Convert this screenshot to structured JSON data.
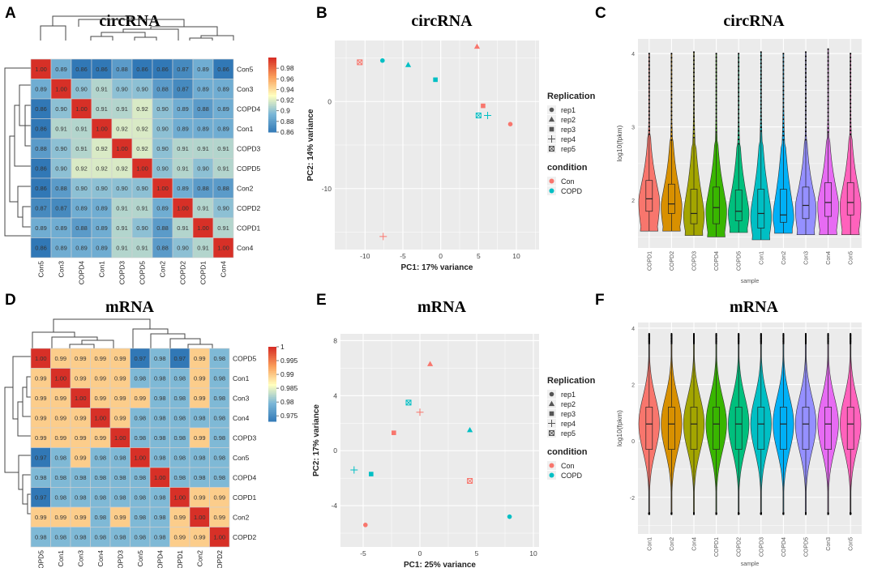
{
  "figure": {
    "panel_letters": [
      "A",
      "B",
      "C",
      "D",
      "E",
      "F"
    ]
  },
  "chart_data": [
    {
      "panel": "A",
      "type": "heatmap",
      "title": "circRNA",
      "labels": [
        "Con5",
        "Con3",
        "COPD4",
        "Con1",
        "COPD3",
        "COPD5",
        "Con2",
        "COPD2",
        "COPD1",
        "Con4"
      ],
      "values": [
        [
          "1.00",
          "0.89",
          "0.86",
          "0.86",
          "0.88",
          "0.86",
          "0.86",
          "0.87",
          "0.89",
          "0.86"
        ],
        [
          "0.89",
          "1.00",
          "0.90",
          "0.91",
          "0.90",
          "0.90",
          "0.88",
          "0.87",
          "0.89",
          "0.89"
        ],
        [
          "0.86",
          "0.90",
          "1.00",
          "0.91",
          "0.91",
          "0.92",
          "0.90",
          "0.89",
          "0.88",
          "0.89"
        ],
        [
          "0.86",
          "0.91",
          "0.91",
          "1.00",
          "0.92",
          "0.92",
          "0.90",
          "0.89",
          "0.89",
          "0.89"
        ],
        [
          "0.88",
          "0.90",
          "0.91",
          "0.92",
          "1.00",
          "0.92",
          "0.90",
          "0.91",
          "0.91",
          "0.91"
        ],
        [
          "0.86",
          "0.90",
          "0.92",
          "0.92",
          "0.92",
          "1.00",
          "0.90",
          "0.91",
          "0.90",
          "0.91"
        ],
        [
          "0.86",
          "0.88",
          "0.90",
          "0.90",
          "0.90",
          "0.90",
          "1.00",
          "0.89",
          "0.88",
          "0.88"
        ],
        [
          "0.87",
          "0.87",
          "0.89",
          "0.89",
          "0.91",
          "0.91",
          "0.89",
          "1.00",
          "0.91",
          "0.90"
        ],
        [
          "0.89",
          "0.89",
          "0.88",
          "0.89",
          "0.91",
          "0.90",
          "0.88",
          "0.91",
          "1.00",
          "0.91"
        ],
        [
          "0.86",
          "0.89",
          "0.89",
          "0.89",
          "0.91",
          "0.91",
          "0.88",
          "0.90",
          "0.91",
          "1.00"
        ]
      ],
      "color_min": 0.86,
      "color_max": 1.0,
      "colorbar_ticks": [
        "0.98",
        "0.96",
        "0.94",
        "0.92",
        "0.9",
        "0.88",
        "0.86"
      ],
      "colorbar_tick_values": [
        0.98,
        0.96,
        0.94,
        0.92,
        0.9,
        0.88,
        0.86
      ]
    },
    {
      "panel": "B",
      "type": "scatter",
      "title": "circRNA",
      "xlabel": "PC1: 17% variance",
      "ylabel": "PC2: 14% variance",
      "xlim": [
        -14,
        13
      ],
      "ylim": [
        -17,
        7
      ],
      "xticks": [
        -10,
        -5,
        0,
        5,
        10
      ],
      "yticks": [
        0,
        -10
      ],
      "points": [
        {
          "x": 4.8,
          "y": 6.3,
          "condition": "Con",
          "rep": "rep2"
        },
        {
          "x": -10.7,
          "y": 4.5,
          "condition": "Con",
          "rep": "rep5"
        },
        {
          "x": -7.7,
          "y": 4.7,
          "condition": "COPD",
          "rep": "rep1"
        },
        {
          "x": -4.3,
          "y": 4.2,
          "condition": "COPD",
          "rep": "rep2"
        },
        {
          "x": -0.7,
          "y": 2.5,
          "condition": "COPD",
          "rep": "rep3"
        },
        {
          "x": 5.6,
          "y": -0.5,
          "condition": "Con",
          "rep": "rep3"
        },
        {
          "x": 5.0,
          "y": -1.6,
          "condition": "COPD",
          "rep": "rep5"
        },
        {
          "x": 6.2,
          "y": -1.6,
          "condition": "COPD",
          "rep": "rep4"
        },
        {
          "x": 9.2,
          "y": -2.6,
          "condition": "Con",
          "rep": "rep1"
        },
        {
          "x": -7.6,
          "y": -15.5,
          "condition": "Con",
          "rep": "rep4"
        }
      ],
      "legend": {
        "shape_title": "Replication",
        "shape_items": [
          "rep1",
          "rep2",
          "rep3",
          "rep4",
          "rep5"
        ],
        "color_title": "condition",
        "color_items": [
          "Con",
          "COPD"
        ],
        "colors": {
          "Con": "#F8766D",
          "COPD": "#00BFC4"
        }
      }
    },
    {
      "panel": "C",
      "type": "violin",
      "title": "circRNA",
      "xlabel": "sample",
      "ylabel": "log10(fpkm)",
      "ylim": [
        1.35,
        4.2
      ],
      "yticks": [
        2,
        3,
        4
      ],
      "categories": [
        "COPD1",
        "COPD2",
        "COPD3",
        "COPD4",
        "COPD5",
        "Con1",
        "Con2",
        "Con3",
        "Con4",
        "Con5"
      ],
      "colors": [
        "#F8766D",
        "#D89000",
        "#A3A500",
        "#39B600",
        "#00BF7D",
        "#00BFC4",
        "#00B0F6",
        "#9590FF",
        "#E76BF3",
        "#FF62BC"
      ],
      "min": [
        1.58,
        1.58,
        1.52,
        1.5,
        1.56,
        1.46,
        1.55,
        1.53,
        1.53,
        1.53
      ],
      "q1": [
        1.85,
        1.82,
        1.68,
        1.68,
        1.72,
        1.62,
        1.7,
        1.75,
        1.78,
        1.8
      ],
      "median": [
        2.02,
        1.95,
        1.82,
        1.9,
        1.85,
        1.82,
        1.8,
        1.93,
        1.97,
        1.97
      ],
      "q3": [
        2.27,
        2.22,
        2.15,
        2.18,
        2.14,
        2.15,
        2.15,
        2.18,
        2.24,
        2.24
      ],
      "max": [
        4.0,
        4.0,
        4.02,
        4.0,
        4.0,
        4.02,
        4.0,
        4.02,
        4.06,
        4.0
      ]
    },
    {
      "panel": "D",
      "type": "heatmap",
      "title": "mRNA",
      "labels": [
        "COPD5",
        "Con1",
        "Con3",
        "Con4",
        "COPD3",
        "Con5",
        "COPD4",
        "COPD1",
        "Con2",
        "COPD2"
      ],
      "values": [
        [
          "1.00",
          "0.99",
          "0.99",
          "0.99",
          "0.99",
          "0.97",
          "0.98",
          "0.97",
          "0.99",
          "0.98"
        ],
        [
          "0.99",
          "1.00",
          "0.99",
          "0.99",
          "0.99",
          "0.98",
          "0.98",
          "0.98",
          "0.99",
          "0.98"
        ],
        [
          "0.99",
          "0.99",
          "1.00",
          "0.99",
          "0.99",
          "0.99",
          "0.98",
          "0.98",
          "0.99",
          "0.98"
        ],
        [
          "0.99",
          "0.99",
          "0.99",
          "1.00",
          "0.99",
          "0.98",
          "0.98",
          "0.98",
          "0.98",
          "0.98"
        ],
        [
          "0.99",
          "0.99",
          "0.99",
          "0.99",
          "1.00",
          "0.98",
          "0.98",
          "0.98",
          "0.99",
          "0.98"
        ],
        [
          "0.97",
          "0.98",
          "0.99",
          "0.98",
          "0.98",
          "1.00",
          "0.98",
          "0.98",
          "0.98",
          "0.98"
        ],
        [
          "0.98",
          "0.98",
          "0.98",
          "0.98",
          "0.98",
          "0.98",
          "1.00",
          "0.98",
          "0.98",
          "0.98"
        ],
        [
          "0.97",
          "0.98",
          "0.98",
          "0.98",
          "0.98",
          "0.98",
          "0.98",
          "1.00",
          "0.99",
          "0.99"
        ],
        [
          "0.99",
          "0.99",
          "0.99",
          "0.98",
          "0.99",
          "0.98",
          "0.98",
          "0.99",
          "1.00",
          "0.99"
        ],
        [
          "0.98",
          "0.98",
          "0.98",
          "0.98",
          "0.98",
          "0.98",
          "0.98",
          "0.99",
          "0.99",
          "1.00"
        ]
      ],
      "color_min": 0.973,
      "color_max": 1.0,
      "colorbar_ticks": [
        "1",
        "0.995",
        "0.99",
        "0.985",
        "0.98",
        "0.975"
      ],
      "colorbar_tick_values": [
        1.0,
        0.995,
        0.99,
        0.985,
        0.98,
        0.975
      ]
    },
    {
      "panel": "E",
      "type": "scatter",
      "title": "mRNA",
      "xlabel": "PC1: 25% variance",
      "ylabel": "PC2: 17% variance",
      "xlim": [
        -7,
        10.5
      ],
      "ylim": [
        -7,
        8.5
      ],
      "xticks": [
        -5,
        0,
        5,
        10
      ],
      "yticks": [
        8,
        4,
        0,
        -4
      ],
      "points": [
        {
          "x": 0.9,
          "y": 6.3,
          "condition": "Con",
          "rep": "rep2"
        },
        {
          "x": -1.0,
          "y": 3.5,
          "condition": "COPD",
          "rep": "rep5"
        },
        {
          "x": 0.0,
          "y": 2.8,
          "condition": "Con",
          "rep": "rep4"
        },
        {
          "x": 4.4,
          "y": 1.5,
          "condition": "COPD",
          "rep": "rep2"
        },
        {
          "x": -2.3,
          "y": 1.3,
          "condition": "Con",
          "rep": "rep3"
        },
        {
          "x": -5.8,
          "y": -1.4,
          "condition": "COPD",
          "rep": "rep4"
        },
        {
          "x": -4.3,
          "y": -1.7,
          "condition": "COPD",
          "rep": "rep3"
        },
        {
          "x": 4.4,
          "y": -2.2,
          "condition": "Con",
          "rep": "rep5"
        },
        {
          "x": 7.9,
          "y": -4.8,
          "condition": "COPD",
          "rep": "rep1"
        },
        {
          "x": -4.8,
          "y": -5.4,
          "condition": "Con",
          "rep": "rep1"
        }
      ],
      "legend": {
        "shape_title": "Replication",
        "shape_items": [
          "rep1",
          "rep2",
          "rep3",
          "rep4",
          "rep5"
        ],
        "color_title": "condition",
        "color_items": [
          "Con",
          "COPD"
        ],
        "colors": {
          "Con": "#F8766D",
          "COPD": "#00BFC4"
        }
      }
    },
    {
      "panel": "F",
      "type": "violin",
      "title": "mRNA",
      "xlabel": "sample",
      "ylabel": "log10(fpkm)",
      "ylim": [
        -3.3,
        4.2
      ],
      "yticks": [
        4,
        2,
        0,
        -2
      ],
      "categories": [
        "Con1",
        "Con2",
        "Con4",
        "COPD1",
        "COPD2",
        "COPD3",
        "COPD4",
        "COPD5",
        "Con3",
        "Con5"
      ],
      "colors": [
        "#F8766D",
        "#D89000",
        "#A3A500",
        "#39B600",
        "#00BF7D",
        "#00BFC4",
        "#00B0F6",
        "#9590FF",
        "#E76BF3",
        "#FF62BC"
      ],
      "min": [
        -2.6,
        -2.6,
        -2.6,
        -2.6,
        -2.6,
        -2.6,
        -2.6,
        -2.6,
        -2.6,
        -2.6
      ],
      "q1": [
        -0.3,
        -0.3,
        -0.3,
        -0.3,
        -0.3,
        -0.3,
        -0.3,
        -0.3,
        -0.3,
        -0.3
      ],
      "median": [
        0.6,
        0.6,
        0.6,
        0.6,
        0.6,
        0.6,
        0.6,
        0.6,
        0.6,
        0.6
      ],
      "q3": [
        1.2,
        1.2,
        1.2,
        1.2,
        1.2,
        1.2,
        1.2,
        1.2,
        1.2,
        1.2
      ],
      "max": [
        3.8,
        3.8,
        3.8,
        3.8,
        3.8,
        3.8,
        3.8,
        3.8,
        3.8,
        3.8
      ]
    }
  ]
}
